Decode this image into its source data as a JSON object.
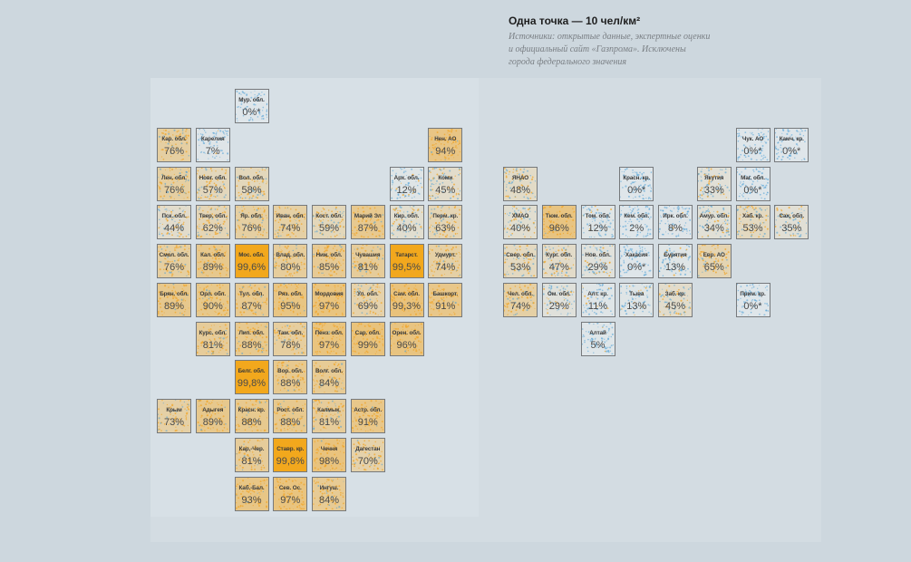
{
  "legend": {
    "title": "Одна точка — 10 чел/км²",
    "note_lines": [
      "Источники: открытые данные, экспертные оценки",
      "и официальный сайт «Газпрома». Исключены",
      "города федерального значения"
    ]
  },
  "colors": {
    "page_background": "#cdd7de",
    "panel_background": "#d7e0e6",
    "high_coverage": "#f2a81c",
    "low_coverage_dots": "#4a9fd6",
    "tile_border": "#76797c"
  },
  "regions": [
    {
      "name": "Мур. обл.",
      "value": "0%*",
      "pct": 0,
      "col": 2,
      "row": 0
    },
    {
      "name": "Кар. обл.",
      "value": "76%",
      "pct": 76,
      "col": 0,
      "row": 1
    },
    {
      "name": "Карелия",
      "value": "7%",
      "pct": 7,
      "col": 1,
      "row": 1
    },
    {
      "name": "Нен. АО",
      "value": "94%",
      "pct": 94,
      "col": 7,
      "row": 1
    },
    {
      "name": "Лен. обл.",
      "value": "76%",
      "pct": 76,
      "col": 0,
      "row": 2
    },
    {
      "name": "Новг. обл.",
      "value": "57%",
      "pct": 57,
      "col": 1,
      "row": 2
    },
    {
      "name": "Вол. обл.",
      "value": "58%",
      "pct": 58,
      "col": 2,
      "row": 2
    },
    {
      "name": "Арх. обл.",
      "value": "12%",
      "pct": 12,
      "col": 6,
      "row": 2
    },
    {
      "name": "Коми",
      "value": "45%",
      "pct": 45,
      "col": 7,
      "row": 2
    },
    {
      "name": "Пск. обл.",
      "value": "44%",
      "pct": 44,
      "col": 0,
      "row": 3
    },
    {
      "name": "Твер. обл.",
      "value": "62%",
      "pct": 62,
      "col": 1,
      "row": 3
    },
    {
      "name": "Яр. обл.",
      "value": "76%",
      "pct": 76,
      "col": 2,
      "row": 3
    },
    {
      "name": "Иван. обл.",
      "value": "74%",
      "pct": 74,
      "col": 3,
      "row": 3
    },
    {
      "name": "Кост. обл.",
      "value": "59%",
      "pct": 59,
      "col": 4,
      "row": 3
    },
    {
      "name": "Марий Эл",
      "value": "87%",
      "pct": 87,
      "col": 5,
      "row": 3
    },
    {
      "name": "Кир. обл.",
      "value": "40%",
      "pct": 40,
      "col": 6,
      "row": 3
    },
    {
      "name": "Перм. кр.",
      "value": "63%",
      "pct": 63,
      "col": 7,
      "row": 3
    },
    {
      "name": "Смол. обл.",
      "value": "76%",
      "pct": 76,
      "col": 0,
      "row": 4
    },
    {
      "name": "Кал. обл.",
      "value": "89%",
      "pct": 89,
      "col": 1,
      "row": 4
    },
    {
      "name": "Мос. обл.",
      "value": "99,6%",
      "pct": 99.6,
      "col": 2,
      "row": 4
    },
    {
      "name": "Влад. обл.",
      "value": "80%",
      "pct": 80,
      "col": 3,
      "row": 4
    },
    {
      "name": "Ниж. обл.",
      "value": "85%",
      "pct": 85,
      "col": 4,
      "row": 4
    },
    {
      "name": "Чувашия",
      "value": "81%",
      "pct": 81,
      "col": 5,
      "row": 4
    },
    {
      "name": "Татарст.",
      "value": "99,5%",
      "pct": 99.5,
      "col": 6,
      "row": 4
    },
    {
      "name": "Удмурт.",
      "value": "74%",
      "pct": 74,
      "col": 7,
      "row": 4
    },
    {
      "name": "Брян. обл.",
      "value": "89%",
      "pct": 89,
      "col": 0,
      "row": 5
    },
    {
      "name": "Орл. обл.",
      "value": "90%",
      "pct": 90,
      "col": 1,
      "row": 5
    },
    {
      "name": "Тул. обл.",
      "value": "87%",
      "pct": 87,
      "col": 2,
      "row": 5
    },
    {
      "name": "Ряз. обл.",
      "value": "95%",
      "pct": 95,
      "col": 3,
      "row": 5
    },
    {
      "name": "Мордовия",
      "value": "97%",
      "pct": 97,
      "col": 4,
      "row": 5
    },
    {
      "name": "Ул. обл.",
      "value": "69%",
      "pct": 69,
      "col": 5,
      "row": 5
    },
    {
      "name": "Сам. обл.",
      "value": "99,3%",
      "pct": 99.3,
      "col": 6,
      "row": 5
    },
    {
      "name": "Башкорт.",
      "value": "91%",
      "pct": 91,
      "col": 7,
      "row": 5
    },
    {
      "name": "Курс. обл.",
      "value": "81%",
      "pct": 81,
      "col": 1,
      "row": 6
    },
    {
      "name": "Лип. обл.",
      "value": "88%",
      "pct": 88,
      "col": 2,
      "row": 6
    },
    {
      "name": "Там. обл.",
      "value": "78%",
      "pct": 78,
      "col": 3,
      "row": 6
    },
    {
      "name": "Пенз. обл.",
      "value": "97%",
      "pct": 97,
      "col": 4,
      "row": 6
    },
    {
      "name": "Сар. обл.",
      "value": "99%",
      "pct": 99,
      "col": 5,
      "row": 6
    },
    {
      "name": "Орен. обл.",
      "value": "96%",
      "pct": 96,
      "col": 6,
      "row": 6
    },
    {
      "name": "Белг. обл.",
      "value": "99,8%",
      "pct": 99.8,
      "col": 2,
      "row": 7
    },
    {
      "name": "Вор. обл.",
      "value": "88%",
      "pct": 88,
      "col": 3,
      "row": 7
    },
    {
      "name": "Волг. обл.",
      "value": "84%",
      "pct": 84,
      "col": 4,
      "row": 7
    },
    {
      "name": "Крым",
      "value": "73%",
      "pct": 73,
      "col": 0,
      "row": 8
    },
    {
      "name": "Адыгея",
      "value": "89%",
      "pct": 89,
      "col": 1,
      "row": 8
    },
    {
      "name": "Красн. кр.",
      "value": "88%",
      "pct": 88,
      "col": 2,
      "row": 8
    },
    {
      "name": "Рост. обл.",
      "value": "88%",
      "pct": 88,
      "col": 3,
      "row": 8
    },
    {
      "name": "Калмык.",
      "value": "81%",
      "pct": 81,
      "col": 4,
      "row": 8
    },
    {
      "name": "Астр. обл.",
      "value": "91%",
      "pct": 91,
      "col": 5,
      "row": 8
    },
    {
      "name": "Кар.-Чер.",
      "value": "81%",
      "pct": 81,
      "col": 2,
      "row": 9
    },
    {
      "name": "Ставр. кр.",
      "value": "99,8%",
      "pct": 99.8,
      "col": 3,
      "row": 9
    },
    {
      "name": "Чечня",
      "value": "98%",
      "pct": 98,
      "col": 4,
      "row": 9
    },
    {
      "name": "Дагестан",
      "value": "70%",
      "pct": 70,
      "col": 5,
      "row": 9
    },
    {
      "name": "Каб.-Бал.",
      "value": "93%",
      "pct": 93,
      "col": 2,
      "row": 10
    },
    {
      "name": "Сев. Ос.",
      "value": "97%",
      "pct": 97,
      "col": 3,
      "row": 10
    },
    {
      "name": "Ингуш.",
      "value": "84%",
      "pct": 84,
      "col": 4,
      "row": 10
    },
    {
      "name": "Чук. АО",
      "value": "0%*",
      "pct": 0,
      "col": 14,
      "row": 1
    },
    {
      "name": "Камч. кр.",
      "value": "0%*",
      "pct": 0,
      "col": 15,
      "row": 1
    },
    {
      "name": "ЯНАО",
      "value": "48%",
      "pct": 48,
      "col": 8,
      "row": 2
    },
    {
      "name": "Красн. кр.",
      "value": "0%*",
      "pct": 0,
      "col": 11,
      "row": 2
    },
    {
      "name": "Якутия",
      "value": "33%",
      "pct": 33,
      "col": 13,
      "row": 2
    },
    {
      "name": "Маг. обл.",
      "value": "0%*",
      "pct": 0,
      "col": 14,
      "row": 2
    },
    {
      "name": "ХМАО",
      "value": "40%",
      "pct": 40,
      "col": 8,
      "row": 3
    },
    {
      "name": "Тюм. обл.",
      "value": "96%",
      "pct": 96,
      "col": 9,
      "row": 3
    },
    {
      "name": "Том. обл.",
      "value": "12%",
      "pct": 12,
      "col": 10,
      "row": 3
    },
    {
      "name": "Кем. обл.",
      "value": "2%",
      "pct": 2,
      "col": 11,
      "row": 3
    },
    {
      "name": "Ирк. обл.",
      "value": "8%",
      "pct": 8,
      "col": 12,
      "row": 3
    },
    {
      "name": "Амур. обл.",
      "value": "34%",
      "pct": 34,
      "col": 13,
      "row": 3
    },
    {
      "name": "Хаб. кр.",
      "value": "53%",
      "pct": 53,
      "col": 14,
      "row": 3
    },
    {
      "name": "Сах. обл.",
      "value": "35%",
      "pct": 35,
      "col": 15,
      "row": 3
    },
    {
      "name": "Свер. обл.",
      "value": "53%",
      "pct": 53,
      "col": 8,
      "row": 4
    },
    {
      "name": "Кург. обл.",
      "value": "47%",
      "pct": 47,
      "col": 9,
      "row": 4
    },
    {
      "name": "Нов. обл.",
      "value": "29%",
      "pct": 29,
      "col": 10,
      "row": 4
    },
    {
      "name": "Хакасия",
      "value": "0%*",
      "pct": 0,
      "col": 11,
      "row": 4
    },
    {
      "name": "Бурятия",
      "value": "13%",
      "pct": 13,
      "col": 12,
      "row": 4
    },
    {
      "name": "Евр. АО",
      "value": "65%",
      "pct": 65,
      "col": 13,
      "row": 4
    },
    {
      "name": "Чел. обл.",
      "value": "74%",
      "pct": 74,
      "col": 8,
      "row": 5
    },
    {
      "name": "Ом. обл.",
      "value": "29%",
      "pct": 29,
      "col": 9,
      "row": 5
    },
    {
      "name": "Алт. кр.",
      "value": "11%",
      "pct": 11,
      "col": 10,
      "row": 5
    },
    {
      "name": "Тыва",
      "value": "13%",
      "pct": 13,
      "col": 11,
      "row": 5
    },
    {
      "name": "Заб. кр.",
      "value": "45%",
      "pct": 45,
      "col": 12,
      "row": 5
    },
    {
      "name": "Прим. кр.",
      "value": "0%*",
      "pct": 0,
      "col": 14,
      "row": 5
    },
    {
      "name": "Алтай",
      "value": "5%",
      "pct": 5,
      "col": 10,
      "row": 6
    }
  ]
}
